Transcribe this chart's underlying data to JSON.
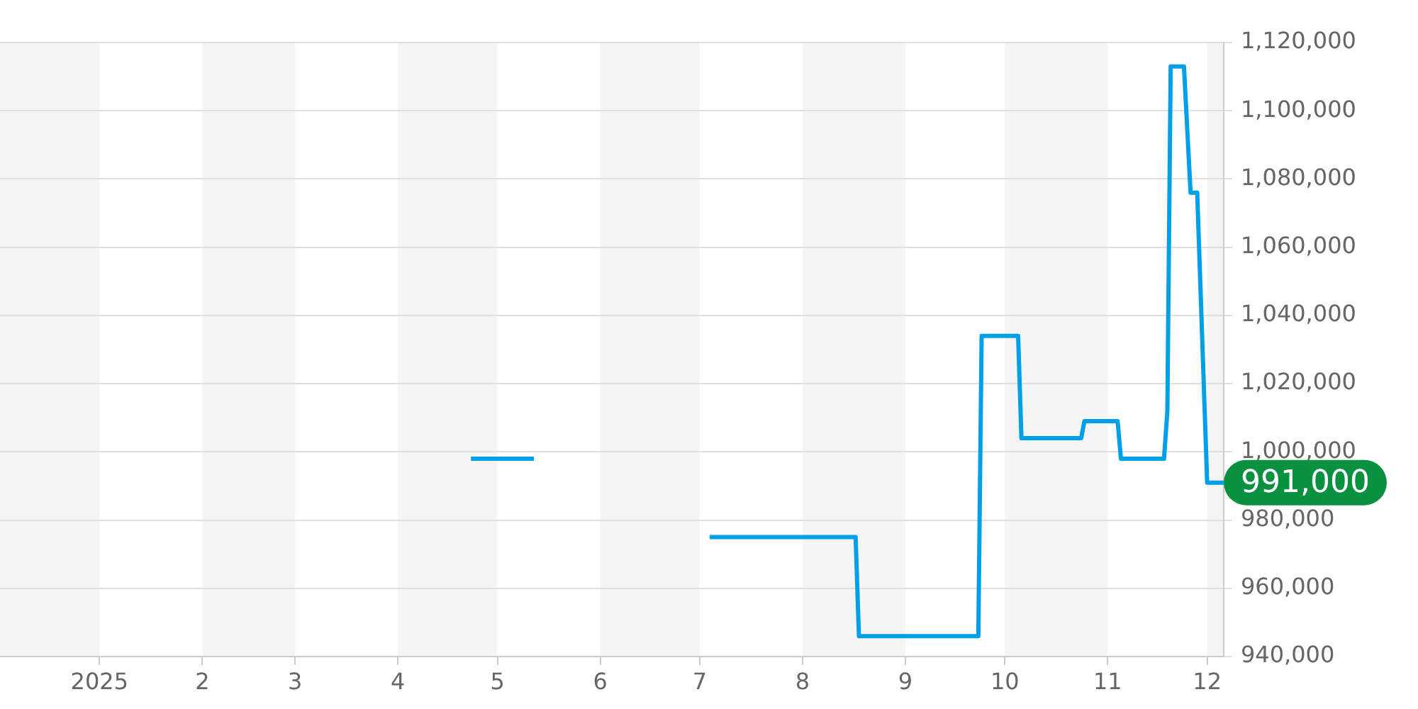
{
  "chart_data": {
    "type": "line",
    "xlim": [
      "2024-12-02",
      "2025-12-06"
    ],
    "xticks": [
      {
        "value": "2025-01-01",
        "label": "2025"
      },
      {
        "value": "2025-02-01",
        "label": "2"
      },
      {
        "value": "2025-03-01",
        "label": "3"
      },
      {
        "value": "2025-04-01",
        "label": "4"
      },
      {
        "value": "2025-05-01",
        "label": "5"
      },
      {
        "value": "2025-06-01",
        "label": "6"
      },
      {
        "value": "2025-07-01",
        "label": "7"
      },
      {
        "value": "2025-08-01",
        "label": "8"
      },
      {
        "value": "2025-09-01",
        "label": "9"
      },
      {
        "value": "2025-10-01",
        "label": "10"
      },
      {
        "value": "2025-11-01",
        "label": "11"
      },
      {
        "value": "2025-12-01",
        "label": "12"
      }
    ],
    "ylim": [
      940000,
      1120000
    ],
    "yticks": [
      {
        "value": 940000,
        "label": "940,000"
      },
      {
        "value": 960000,
        "label": "960,000"
      },
      {
        "value": 980000,
        "label": "980,000"
      },
      {
        "value": 1000000,
        "label": "1,000,000"
      },
      {
        "value": 1020000,
        "label": "1,020,000"
      },
      {
        "value": 1040000,
        "label": "1,040,000"
      },
      {
        "value": 1060000,
        "label": "1,060,000"
      },
      {
        "value": 1080000,
        "label": "1,080,000"
      },
      {
        "value": 1100000,
        "label": "1,100,000"
      },
      {
        "value": 1120000,
        "label": "1,120,000"
      }
    ],
    "grid": "y",
    "legend": false,
    "marker": "none",
    "series": [
      {
        "color": "#00a0e9",
        "x": [
          "2025-04-23",
          "2025-05-12",
          "2025-05-13",
          "2025-07-04",
          "2025-08-17",
          "2025-08-18",
          "2025-09-23",
          "2025-09-24",
          "2025-10-05",
          "2025-10-06",
          "2025-10-24",
          "2025-10-25",
          "2025-11-04",
          "2025-11-05",
          "2025-11-18",
          "2025-11-19",
          "2025-11-20",
          "2025-11-24",
          "2025-11-26",
          "2025-11-28",
          "2025-12-01",
          "2025-12-06"
        ],
        "values": [
          998000,
          998000,
          null,
          975000,
          975000,
          946000,
          946000,
          1034000,
          1034000,
          1004000,
          1004000,
          1009000,
          1009000,
          998000,
          998000,
          1012000,
          1113000,
          1113000,
          1076000,
          1076000,
          991000,
          991000
        ]
      }
    ],
    "bands": [
      {
        "axis": "x",
        "from": "2024-12-02",
        "to": "2025-01-01",
        "color": "#f5f5f5"
      },
      {
        "axis": "x",
        "from": "2025-02-01",
        "to": "2025-03-01",
        "color": "#f5f5f5"
      },
      {
        "axis": "x",
        "from": "2025-04-01",
        "to": "2025-05-01",
        "color": "#f5f5f5"
      },
      {
        "axis": "x",
        "from": "2025-06-01",
        "to": "2025-07-01",
        "color": "#f5f5f5"
      },
      {
        "axis": "x",
        "from": "2025-08-01",
        "to": "2025-09-01",
        "color": "#f5f5f5"
      },
      {
        "axis": "x",
        "from": "2025-10-01",
        "to": "2025-11-01",
        "color": "#f5f5f5"
      },
      {
        "axis": "x",
        "from": "2025-12-01",
        "to": "2025-12-06",
        "color": "#f5f5f5"
      }
    ],
    "annotations": [
      {
        "text": "991,000",
        "x": "2025-12-06",
        "y": 991000
      }
    ]
  }
}
